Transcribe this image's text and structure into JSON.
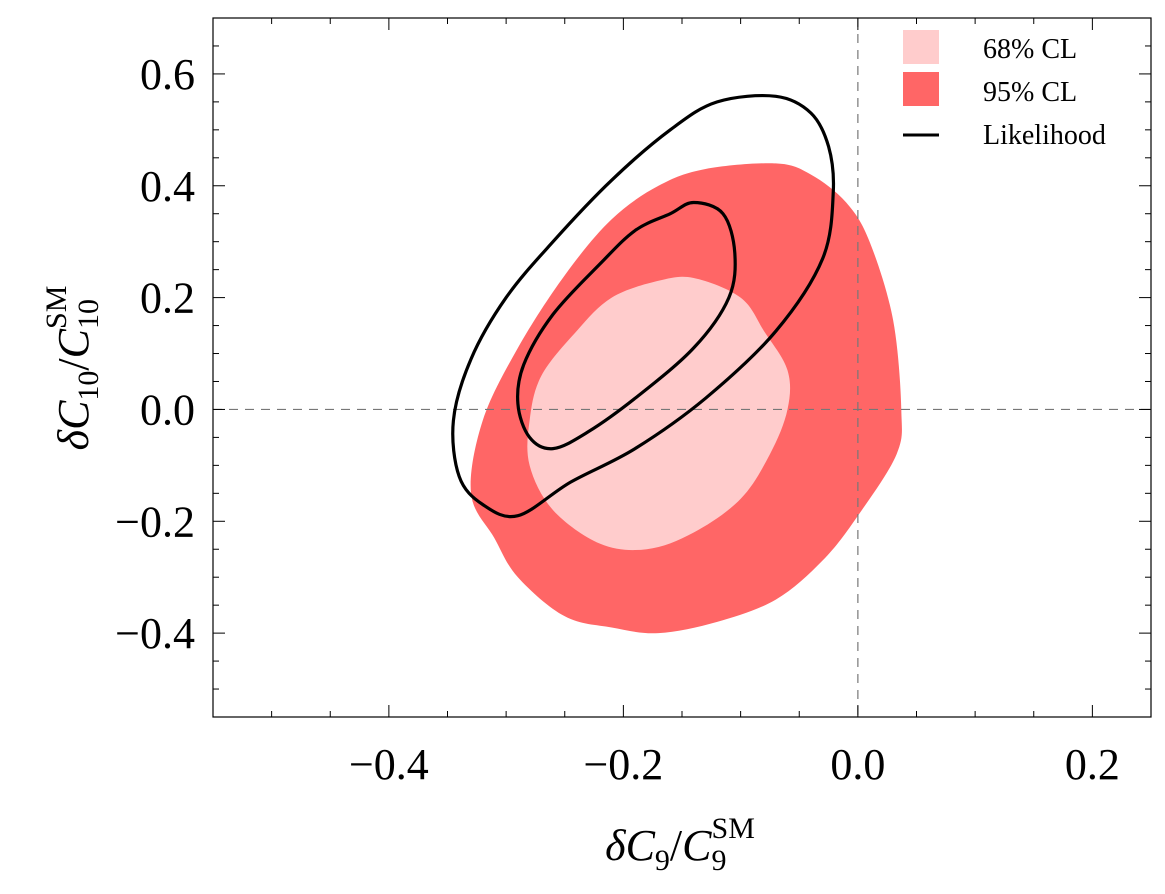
{
  "chart_data": {
    "type": "contour",
    "title": "",
    "xlabel": {
      "delta": "δ",
      "symbol": "C",
      "sub": "9",
      "slash": "/",
      "sup": "SM"
    },
    "ylabel": {
      "delta": "δ",
      "symbol": "C",
      "sub": "10",
      "slash": "/",
      "sup": "SM"
    },
    "xlim": [
      -0.55,
      0.25
    ],
    "ylim": [
      -0.55,
      0.7
    ],
    "xticks": [
      -0.4,
      -0.2,
      0.0,
      0.2
    ],
    "xtick_labels": [
      "−0.4",
      "−0.2",
      "0.0",
      "0.2"
    ],
    "yticks": [
      -0.4,
      -0.2,
      0.0,
      0.2,
      0.4,
      0.6
    ],
    "ytick_labels": [
      "−0.4",
      "−0.2",
      "0.0",
      "0.2",
      "0.4",
      "0.6"
    ],
    "reference_lines": {
      "x": 0.0,
      "y": 0.0,
      "style": "dashed"
    },
    "legend": {
      "position": "top-right",
      "entries": [
        {
          "label": "68% CL",
          "kind": "fill",
          "color": "#ffcccc"
        },
        {
          "label": "95% CL",
          "kind": "fill",
          "color": "#ff6666"
        },
        {
          "label": "Likelihood",
          "kind": "line",
          "color": "#000000"
        }
      ]
    },
    "regions": [
      {
        "name": "95% CL",
        "color": "#ff6666",
        "points": [
          [
            -0.13,
            0.43
          ],
          [
            -0.07,
            0.44
          ],
          [
            -0.04,
            0.42
          ],
          [
            -0.01,
            0.37
          ],
          [
            0.01,
            0.3
          ],
          [
            0.03,
            0.16
          ],
          [
            0.037,
            0.0
          ],
          [
            0.033,
            -0.08
          ],
          [
            0.0,
            -0.19
          ],
          [
            -0.03,
            -0.27
          ],
          [
            -0.07,
            -0.34
          ],
          [
            -0.12,
            -0.38
          ],
          [
            -0.17,
            -0.4
          ],
          [
            -0.21,
            -0.39
          ],
          [
            -0.25,
            -0.37
          ],
          [
            -0.29,
            -0.3
          ],
          [
            -0.31,
            -0.23
          ],
          [
            -0.33,
            -0.15
          ],
          [
            -0.32,
            -0.02
          ],
          [
            -0.29,
            0.11
          ],
          [
            -0.25,
            0.24
          ],
          [
            -0.21,
            0.34
          ],
          [
            -0.17,
            0.4
          ]
        ]
      },
      {
        "name": "68% CL",
        "color": "#ffcccc",
        "points": [
          [
            -0.17,
            0.23
          ],
          [
            -0.14,
            0.235
          ],
          [
            -0.1,
            0.2
          ],
          [
            -0.08,
            0.14
          ],
          [
            -0.06,
            0.07
          ],
          [
            -0.06,
            0.0
          ],
          [
            -0.075,
            -0.08
          ],
          [
            -0.1,
            -0.16
          ],
          [
            -0.14,
            -0.22
          ],
          [
            -0.18,
            -0.25
          ],
          [
            -0.22,
            -0.24
          ],
          [
            -0.26,
            -0.18
          ],
          [
            -0.28,
            -0.1
          ],
          [
            -0.28,
            -0.02
          ],
          [
            -0.27,
            0.06
          ],
          [
            -0.24,
            0.14
          ],
          [
            -0.21,
            0.2
          ]
        ]
      }
    ],
    "contours": [
      {
        "name": "Likelihood outer",
        "color": "#000000",
        "points": [
          [
            -0.12,
            0.55
          ],
          [
            -0.07,
            0.56
          ],
          [
            -0.04,
            0.53
          ],
          [
            -0.025,
            0.47
          ],
          [
            -0.021,
            0.39
          ],
          [
            -0.03,
            0.27
          ],
          [
            -0.07,
            0.14
          ],
          [
            -0.13,
            0.02
          ],
          [
            -0.19,
            -0.07
          ],
          [
            -0.245,
            -0.13
          ],
          [
            -0.29,
            -0.19
          ],
          [
            -0.32,
            -0.17
          ],
          [
            -0.34,
            -0.12
          ],
          [
            -0.345,
            -0.02
          ],
          [
            -0.33,
            0.09
          ],
          [
            -0.3,
            0.2
          ],
          [
            -0.26,
            0.3
          ],
          [
            -0.21,
            0.41
          ],
          [
            -0.16,
            0.5
          ]
        ]
      },
      {
        "name": "Likelihood inner",
        "color": "#000000",
        "points": [
          [
            -0.16,
            0.35
          ],
          [
            -0.14,
            0.37
          ],
          [
            -0.115,
            0.35
          ],
          [
            -0.105,
            0.28
          ],
          [
            -0.11,
            0.2
          ],
          [
            -0.14,
            0.11
          ],
          [
            -0.19,
            0.02
          ],
          [
            -0.23,
            -0.04
          ],
          [
            -0.26,
            -0.07
          ],
          [
            -0.28,
            -0.05
          ],
          [
            -0.29,
            0.01
          ],
          [
            -0.285,
            0.08
          ],
          [
            -0.26,
            0.17
          ],
          [
            -0.22,
            0.26
          ],
          [
            -0.19,
            0.32
          ]
        ]
      }
    ]
  }
}
